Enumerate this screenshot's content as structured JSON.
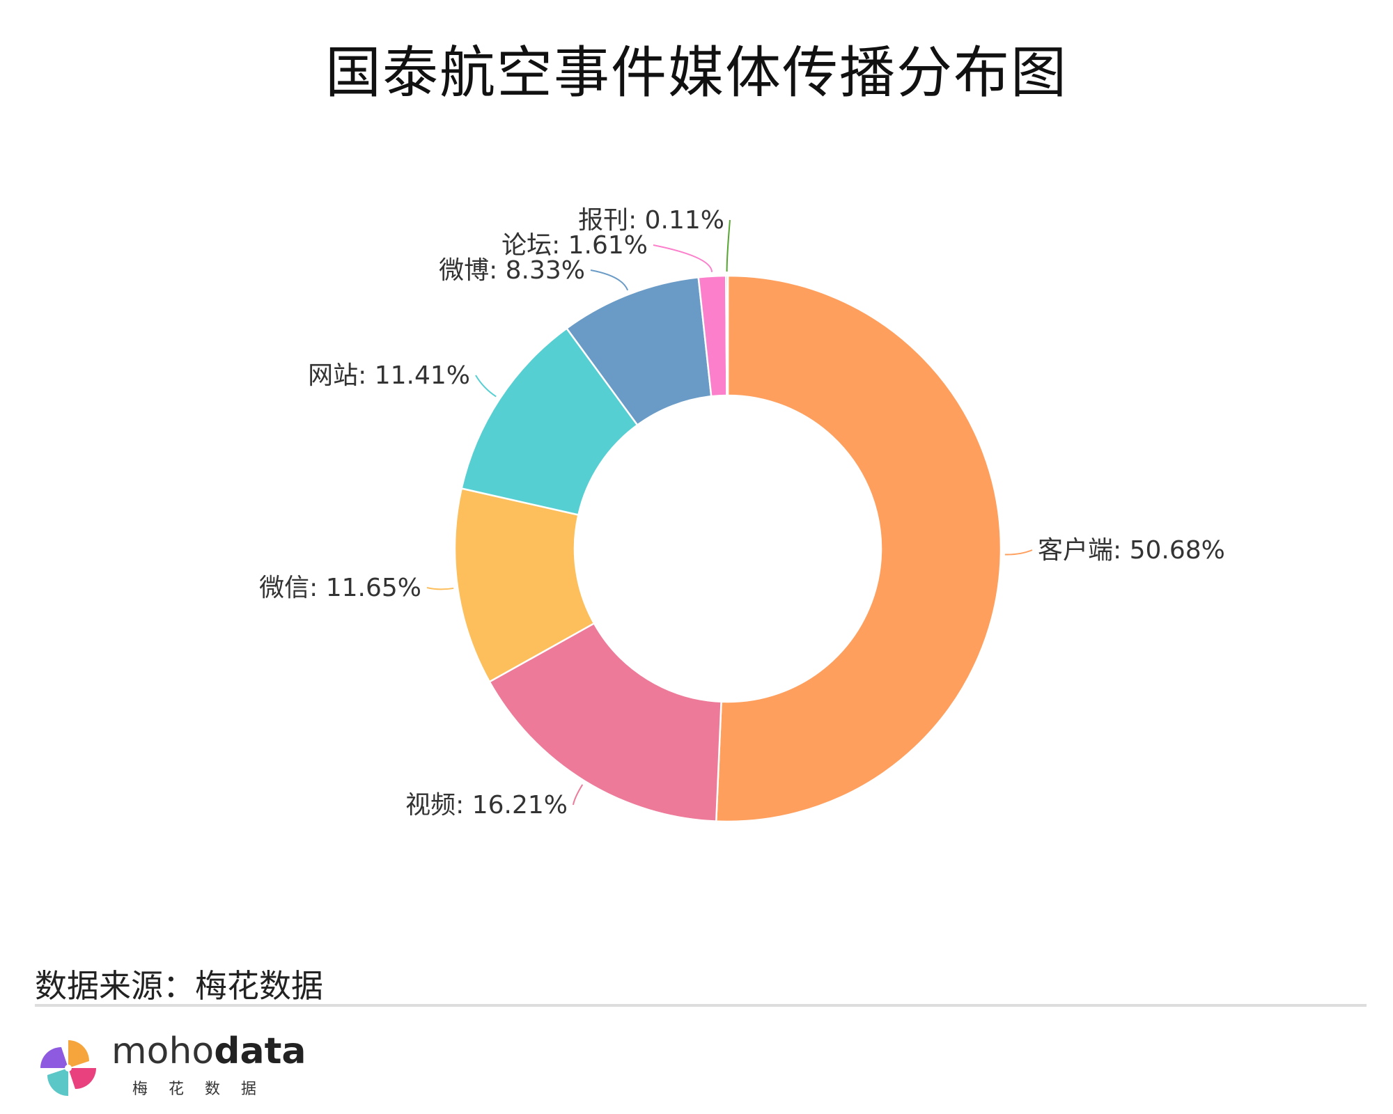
{
  "title": "国泰航空事件媒体传播分布图",
  "source": "数据来源：梅花数据",
  "logo": {
    "text_light": "moho",
    "text_bold": "data",
    "subtitle": "梅花数据",
    "colors": [
      "#F6A53C",
      "#E8417E",
      "#5BC7C7",
      "#8E5BE0"
    ]
  },
  "chart_data": {
    "type": "pie",
    "donut": true,
    "categories": [
      "客户端",
      "视频",
      "微信",
      "网站",
      "微博",
      "论坛",
      "报刊"
    ],
    "values": [
      50.68,
      16.21,
      11.65,
      11.41,
      8.33,
      1.61,
      0.11
    ],
    "labels": [
      "客户端: 50.68%",
      "视频: 16.21%",
      "微信: 11.65%",
      "网站: 11.41%",
      "微博: 8.33%",
      "论坛: 1.61%",
      "报刊: 0.11%"
    ],
    "colors": [
      "#FF9F5E",
      "#EC7A98",
      "#FDBE5C",
      "#56CFD2",
      "#6A9BC6",
      "#FB7FCB",
      "#55A630"
    ],
    "start_angle": "12 o'clock",
    "direction": "clockwise",
    "legend": "none"
  }
}
